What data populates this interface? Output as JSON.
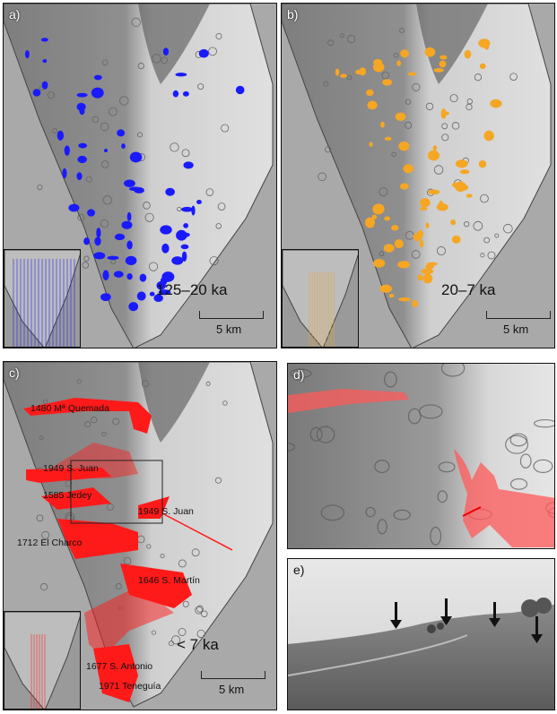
{
  "colors": {
    "panel_a_vents": "#1a1aff",
    "panel_b_vents": "#f5a623",
    "panel_c_flows": "#ff1a1a",
    "background": "#a9a9a9"
  },
  "panels": {
    "a": {
      "label": "a)",
      "age": "125–20 ka",
      "scale": "5 km"
    },
    "b": {
      "label": "b)",
      "age": "20–7 ka",
      "scale": "5 km"
    },
    "c": {
      "label": "c)",
      "age": "< 7 ka",
      "scale": "5 km",
      "flows": [
        "1480 Mª Quemada",
        "1949 S. Juan",
        "1585 Jedey",
        "1949 S. Juan",
        "1712 El Charco",
        "1646 S. Martín",
        "1677 S. Antonio",
        "1971 Teneguía"
      ]
    },
    "d": {
      "label": "d)"
    },
    "e": {
      "label": "e)"
    }
  }
}
